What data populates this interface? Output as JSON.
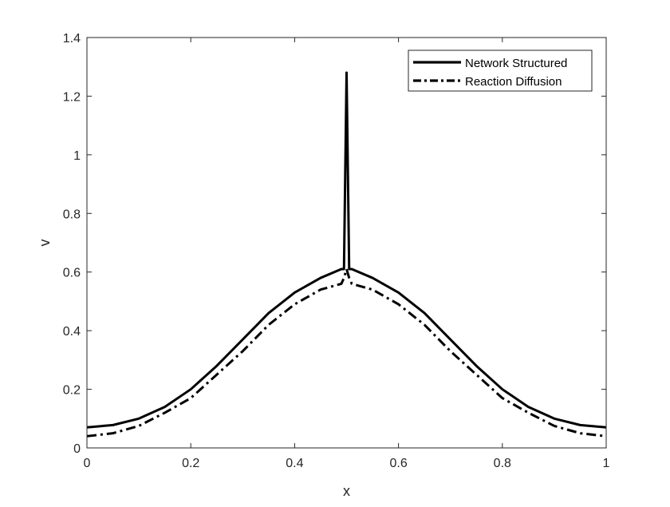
{
  "chart_data": {
    "type": "line",
    "title": "",
    "xlabel": "x",
    "ylabel": "v",
    "xlim": [
      0,
      1
    ],
    "ylim": [
      0,
      1.4
    ],
    "xticks": [
      0,
      0.2,
      0.4,
      0.6,
      0.8,
      1
    ],
    "xtick_labels": [
      "0",
      "0.2",
      "0.4",
      "0.6",
      "0.8",
      "1"
    ],
    "yticks": [
      0,
      0.2,
      0.4,
      0.6,
      0.8,
      1,
      1.2,
      1.4
    ],
    "ytick_labels": [
      "0",
      "0.2",
      "0.4",
      "0.6",
      "0.8",
      "1",
      "1.2",
      "1.4"
    ],
    "grid": false,
    "legend_position": "top-right",
    "series": [
      {
        "name": "Network Structured",
        "style": "solid",
        "color": "#000000",
        "x": [
          0,
          0.05,
          0.1,
          0.15,
          0.2,
          0.25,
          0.3,
          0.35,
          0.4,
          0.45,
          0.49,
          0.495,
          0.5,
          0.505,
          0.51,
          0.55,
          0.6,
          0.65,
          0.7,
          0.75,
          0.8,
          0.85,
          0.9,
          0.95,
          1
        ],
        "y": [
          0.07,
          0.078,
          0.1,
          0.14,
          0.2,
          0.28,
          0.37,
          0.46,
          0.53,
          0.58,
          0.61,
          0.61,
          1.28,
          0.61,
          0.61,
          0.58,
          0.53,
          0.46,
          0.37,
          0.28,
          0.2,
          0.14,
          0.1,
          0.078,
          0.07
        ]
      },
      {
        "name": "Reaction Diffusion",
        "style": "dashdot",
        "color": "#000000",
        "x": [
          0,
          0.05,
          0.1,
          0.15,
          0.2,
          0.25,
          0.3,
          0.35,
          0.4,
          0.45,
          0.49,
          0.495,
          0.5,
          0.505,
          0.51,
          0.55,
          0.6,
          0.65,
          0.7,
          0.75,
          0.8,
          0.85,
          0.9,
          0.95,
          1
        ],
        "y": [
          0.04,
          0.05,
          0.075,
          0.12,
          0.17,
          0.25,
          0.33,
          0.42,
          0.49,
          0.54,
          0.56,
          0.58,
          0.61,
          0.58,
          0.56,
          0.54,
          0.49,
          0.42,
          0.33,
          0.25,
          0.17,
          0.12,
          0.075,
          0.05,
          0.04
        ]
      }
    ]
  }
}
